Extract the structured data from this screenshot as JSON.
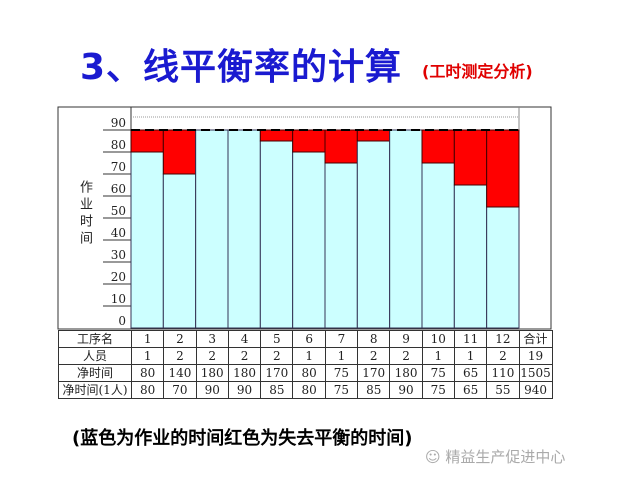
{
  "title": "3、线平衡率的计算",
  "subtitle": "(工时测定分析)",
  "note": "(蓝色为作业的时间红色为失去平衡的时间)",
  "watermark": "精益生产促进中心",
  "colors": {
    "work": "#ccffff",
    "loss": "#ff0000",
    "title": "#1a1ad0"
  },
  "chart_data": {
    "type": "bar",
    "stacked": true,
    "ylabel": "作业时间",
    "ylim": [
      0,
      90
    ],
    "yticks": [
      0,
      10,
      20,
      30,
      40,
      50,
      60,
      70,
      80,
      90
    ],
    "categories": [
      "1",
      "2",
      "3",
      "4",
      "5",
      "6",
      "7",
      "8",
      "9",
      "10",
      "11",
      "12"
    ],
    "max_line": 90,
    "series": [
      {
        "values": [
          80,
          70,
          90,
          90,
          85,
          80,
          75,
          85,
          90,
          75,
          65,
          55
        ],
        "color": "#ccffff"
      },
      {
        "values": [
          10,
          20,
          0,
          0,
          5,
          10,
          15,
          5,
          0,
          15,
          25,
          35
        ],
        "color": "#ff0000"
      }
    ]
  },
  "table": {
    "rows": [
      {
        "label": "工序名",
        "cells": [
          "1",
          "2",
          "3",
          "4",
          "5",
          "6",
          "7",
          "8",
          "9",
          "10",
          "11",
          "12",
          "合计"
        ]
      },
      {
        "label": "人员",
        "cells": [
          "1",
          "2",
          "2",
          "2",
          "2",
          "1",
          "1",
          "2",
          "2",
          "1",
          "1",
          "2",
          "19"
        ]
      },
      {
        "label": "净时间",
        "cells": [
          "80",
          "140",
          "180",
          "180",
          "170",
          "80",
          "75",
          "170",
          "180",
          "75",
          "65",
          "110",
          "1505"
        ]
      },
      {
        "label": "净时间(1人)",
        "cells": [
          "80",
          "70",
          "90",
          "90",
          "85",
          "80",
          "75",
          "85",
          "90",
          "75",
          "65",
          "55",
          "940"
        ]
      }
    ]
  }
}
